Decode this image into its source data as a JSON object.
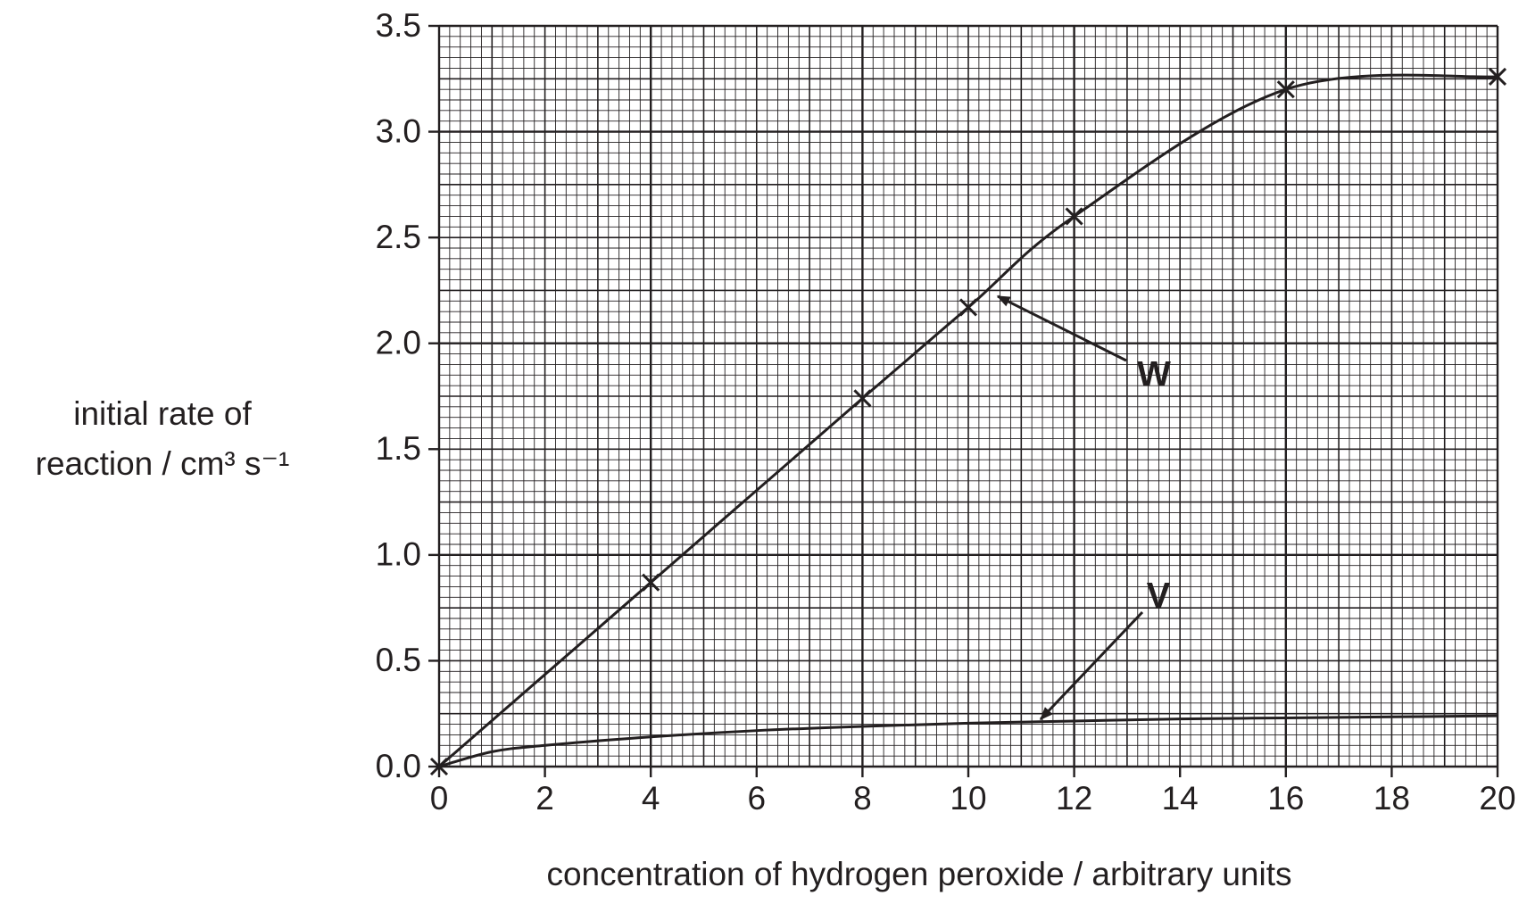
{
  "chart_data": {
    "type": "line",
    "xlabel": "concentration of hydrogen peroxide / arbitrary units",
    "ylabel": [
      "initial rate of",
      "reaction / cm³ s⁻¹"
    ],
    "xlim": [
      0,
      20
    ],
    "xticks": [
      0,
      2,
      4,
      6,
      8,
      10,
      12,
      14,
      16,
      18,
      20
    ],
    "ylim": [
      0,
      3.5
    ],
    "yticks": [
      {
        "value": 0,
        "label": "0.0"
      },
      {
        "value": 0.5,
        "label": "0.5"
      },
      {
        "value": 1,
        "label": "1.0"
      },
      {
        "value": 1.5,
        "label": "1.5"
      },
      {
        "value": 2,
        "label": "2.0"
      },
      {
        "value": 2.5,
        "label": "2.5"
      },
      {
        "value": 3,
        "label": "3.0"
      },
      {
        "value": 3.5,
        "label": "3.5"
      }
    ],
    "grid": true,
    "series": [
      {
        "name": "W",
        "color": "#231f20",
        "markers": true,
        "x": [
          0,
          4,
          8,
          10,
          12,
          16,
          20
        ],
        "values": [
          0,
          0.87,
          1.74,
          2.17,
          2.6,
          3.2,
          3.26
        ]
      },
      {
        "name": "V",
        "color": "#231f20",
        "markers": false,
        "x": [
          0,
          1,
          2,
          4,
          6,
          8,
          10,
          12,
          14,
          16,
          18,
          20
        ],
        "values": [
          0,
          0.07,
          0.1,
          0.14,
          0.17,
          0.19,
          0.205,
          0.215,
          0.225,
          0.23,
          0.235,
          0.24
        ]
      }
    ]
  }
}
